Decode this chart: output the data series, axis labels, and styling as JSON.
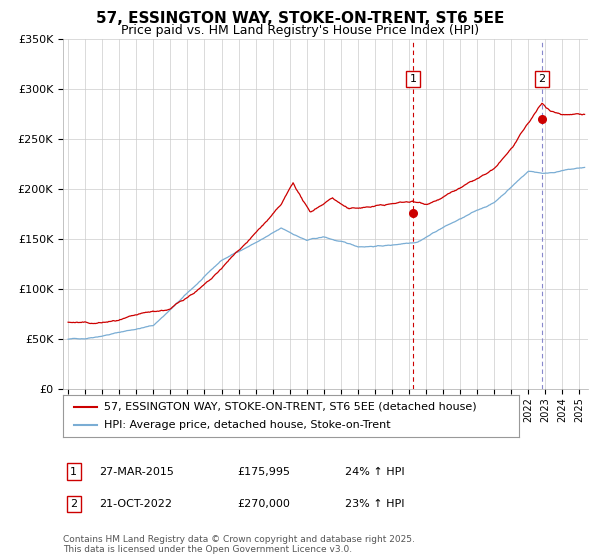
{
  "title": "57, ESSINGTON WAY, STOKE-ON-TRENT, ST6 5EE",
  "subtitle": "Price paid vs. HM Land Registry's House Price Index (HPI)",
  "ylim": [
    0,
    350000
  ],
  "yticks": [
    0,
    50000,
    100000,
    150000,
    200000,
    250000,
    300000,
    350000
  ],
  "ytick_labels": [
    "£0",
    "£50K",
    "£100K",
    "£150K",
    "£200K",
    "£250K",
    "£300K",
    "£350K"
  ],
  "xlim_start": 1994.7,
  "xlim_end": 2025.5,
  "xticks": [
    1995,
    1996,
    1997,
    1998,
    1999,
    2000,
    2001,
    2002,
    2003,
    2004,
    2005,
    2006,
    2007,
    2008,
    2009,
    2010,
    2011,
    2012,
    2013,
    2014,
    2015,
    2016,
    2017,
    2018,
    2019,
    2020,
    2021,
    2022,
    2023,
    2024,
    2025
  ],
  "line1_color": "#cc0000",
  "line2_color": "#7aadd4",
  "vline1_x": 2015.23,
  "vline2_x": 2022.8,
  "vline1_color": "#cc0000",
  "vline2_color": "#8888cc",
  "marker1_x": 2015.23,
  "marker1_y": 175995,
  "marker2_x": 2022.8,
  "marker2_y": 270000,
  "ann1_y": 310000,
  "ann2_y": 310000,
  "legend_label1": "57, ESSINGTON WAY, STOKE-ON-TRENT, ST6 5EE (detached house)",
  "legend_label2": "HPI: Average price, detached house, Stoke-on-Trent",
  "table_row1": [
    "1",
    "27-MAR-2015",
    "£175,995",
    "24% ↑ HPI"
  ],
  "table_row2": [
    "2",
    "21-OCT-2022",
    "£270,000",
    "23% ↑ HPI"
  ],
  "footer": "Contains HM Land Registry data © Crown copyright and database right 2025.\nThis data is licensed under the Open Government Licence v3.0.",
  "bg_color": "#ffffff",
  "grid_color": "#cccccc",
  "title_fontsize": 11,
  "subtitle_fontsize": 9,
  "tick_fontsize": 8,
  "legend_fontsize": 8,
  "table_fontsize": 8,
  "footer_fontsize": 6.5
}
